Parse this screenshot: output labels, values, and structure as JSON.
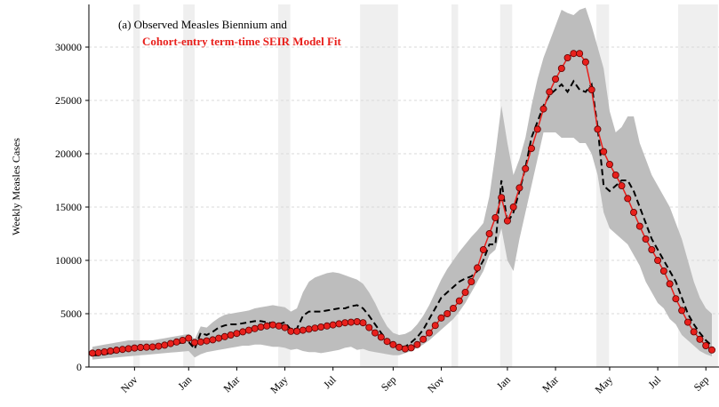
{
  "chart_data": {
    "type": "line",
    "title": "(a) Observed Measles Biennium and",
    "subtitle": "Cohort-entry term-time SEIR Model Fit",
    "y_label": "Weekly Measles Cases",
    "categories": [
      null,
      null,
      null,
      null,
      null,
      null,
      null,
      "Nov",
      null,
      null,
      null,
      null,
      null,
      null,
      null,
      null,
      "Jan",
      null,
      null,
      null,
      null,
      null,
      null,
      null,
      "Mar",
      null,
      null,
      null,
      null,
      null,
      null,
      null,
      "May",
      null,
      null,
      null,
      null,
      null,
      null,
      null,
      "Jul",
      null,
      null,
      null,
      null,
      null,
      null,
      null,
      null,
      null,
      "Sep",
      null,
      null,
      null,
      null,
      null,
      null,
      null,
      "Nov",
      null,
      null,
      null,
      null,
      null,
      null,
      null,
      null,
      null,
      null,
      "Jan",
      null,
      null,
      null,
      null,
      null,
      null,
      null,
      "Mar",
      null,
      null,
      null,
      null,
      null,
      null,
      null,
      null,
      "May",
      null,
      null,
      null,
      null,
      null,
      null,
      null,
      "Jul",
      null,
      null,
      null,
      null,
      null,
      null,
      null,
      "Sep",
      null
    ],
    "ylim": [
      0,
      34000
    ],
    "yticks": [
      0,
      5000,
      10000,
      15000,
      20000,
      25000,
      30000
    ],
    "grid": true,
    "shaded_ranges": [
      [
        6.8,
        7.9
      ],
      [
        15.1,
        17
      ],
      [
        30.9,
        32.9
      ],
      [
        44.5,
        50.8
      ],
      [
        59.7,
        60.8
      ],
      [
        67.8,
        69.8
      ],
      [
        83.8,
        85.9
      ],
      [
        97.4,
        104
      ]
    ],
    "band": {
      "color": "#bdbdbd",
      "upper": [
        1900,
        2000,
        2100,
        2200,
        2300,
        2400,
        2500,
        2500,
        2500,
        2500,
        2500,
        2600,
        2700,
        2800,
        2900,
        3000,
        3100,
        2600,
        3800,
        3700,
        4200,
        4600,
        4900,
        5000,
        5100,
        5200,
        5300,
        5500,
        5600,
        5700,
        5800,
        5700,
        5600,
        5200,
        5500,
        7000,
        8000,
        8400,
        8600,
        8800,
        8900,
        8800,
        8600,
        8400,
        8200,
        7800,
        7000,
        6000,
        4800,
        3800,
        3200,
        3000,
        3100,
        3400,
        4000,
        4800,
        5800,
        7000,
        8200,
        9200,
        10000,
        10800,
        11500,
        12200,
        12800,
        13500,
        16000,
        20000,
        24500,
        21000,
        18000,
        19500,
        21500,
        24500,
        27000,
        29000,
        30500,
        32000,
        33500,
        33200,
        33000,
        33500,
        33700,
        32000,
        30000,
        28000,
        24000,
        22000,
        22500,
        23500,
        23500,
        21000,
        19500,
        18000,
        17000,
        16000,
        15000,
        13500,
        12000,
        10000,
        8000,
        6500,
        5500,
        5000
      ],
      "lower": [
        700,
        750,
        800,
        850,
        900,
        950,
        1000,
        1050,
        1100,
        1150,
        1200,
        1250,
        1300,
        1350,
        1400,
        1450,
        1500,
        900,
        1200,
        1400,
        1500,
        1600,
        1700,
        1800,
        1900,
        2000,
        2000,
        2100,
        2100,
        2000,
        1900,
        1900,
        1800,
        1600,
        1700,
        1500,
        1400,
        1400,
        1300,
        1400,
        1500,
        1600,
        1800,
        1900,
        1600,
        1700,
        1500,
        1400,
        1300,
        1200,
        1100,
        1100,
        1300,
        1500,
        1800,
        2100,
        2500,
        3000,
        3500,
        4000,
        4500,
        5200,
        6000,
        7000,
        8000,
        9000,
        10500,
        11000,
        13000,
        10000,
        9000,
        12000,
        14500,
        17000,
        19500,
        22000,
        22000,
        22000,
        21500,
        21500,
        21500,
        21000,
        21000,
        20000,
        18000,
        14500,
        13000,
        12500,
        12000,
        11500,
        10500,
        9500,
        8000,
        7000,
        6000,
        5500,
        4500,
        4000,
        3000,
        2500,
        2000,
        1500,
        1200,
        1000
      ]
    },
    "series": [
      {
        "color": "#000000",
        "style": "dashed",
        "values": [
          1100,
          1100,
          1200,
          1300,
          1450,
          1600,
          1700,
          1750,
          1800,
          1800,
          1850,
          1900,
          2000,
          2100,
          2200,
          2300,
          2350,
          1700,
          3200,
          3000,
          3300,
          3700,
          3900,
          4000,
          4000,
          4100,
          4200,
          4300,
          4300,
          4200,
          4100,
          4000,
          4200,
          3500,
          3600,
          4800,
          5200,
          5200,
          5200,
          5300,
          5400,
          5500,
          5500,
          5700,
          5800,
          5500,
          4800,
          4000,
          3200,
          2500,
          2100,
          1900,
          1900,
          2300,
          2800,
          3500,
          4500,
          5500,
          6500,
          7000,
          7500,
          8000,
          8300,
          8500,
          9000,
          10000,
          11500,
          11500,
          17500,
          13500,
          14500,
          16500,
          18700,
          21500,
          23000,
          24500,
          25500,
          26000,
          26500,
          25800,
          26800,
          26000,
          25800,
          26500,
          22500,
          17000,
          16500,
          17000,
          17500,
          17500,
          16500,
          15000,
          13500,
          12000,
          11000,
          10000,
          9000,
          8000,
          6500,
          5000,
          4000,
          3200,
          2500,
          2000
        ]
      },
      {
        "color": "#e8201c",
        "style": "markers",
        "values": [
          1300,
          1350,
          1420,
          1500,
          1580,
          1650,
          1720,
          1780,
          1830,
          1860,
          1880,
          1950,
          2050,
          2200,
          2350,
          2500,
          2700,
          2300,
          2350,
          2450,
          2550,
          2700,
          2850,
          3000,
          3150,
          3300,
          3450,
          3600,
          3750,
          3850,
          3950,
          3850,
          3700,
          3350,
          3350,
          3450,
          3550,
          3650,
          3750,
          3850,
          3950,
          4050,
          4150,
          4200,
          4250,
          4150,
          3700,
          3200,
          2800,
          2400,
          2100,
          1850,
          1700,
          1800,
          2100,
          2600,
          3200,
          3900,
          4600,
          5000,
          5500,
          6200,
          7000,
          8000,
          9300,
          11000,
          12500,
          14000,
          15900,
          13700,
          15000,
          16800,
          18600,
          20500,
          22300,
          24200,
          25800,
          27000,
          28000,
          29000,
          29400,
          29400,
          28600,
          26000,
          22300,
          20200,
          19000,
          18000,
          17000,
          15800,
          14500,
          13200,
          12000,
          11000,
          10000,
          9000,
          7800,
          6400,
          5300,
          4200,
          3300,
          2600,
          2000,
          1600
        ]
      }
    ]
  }
}
